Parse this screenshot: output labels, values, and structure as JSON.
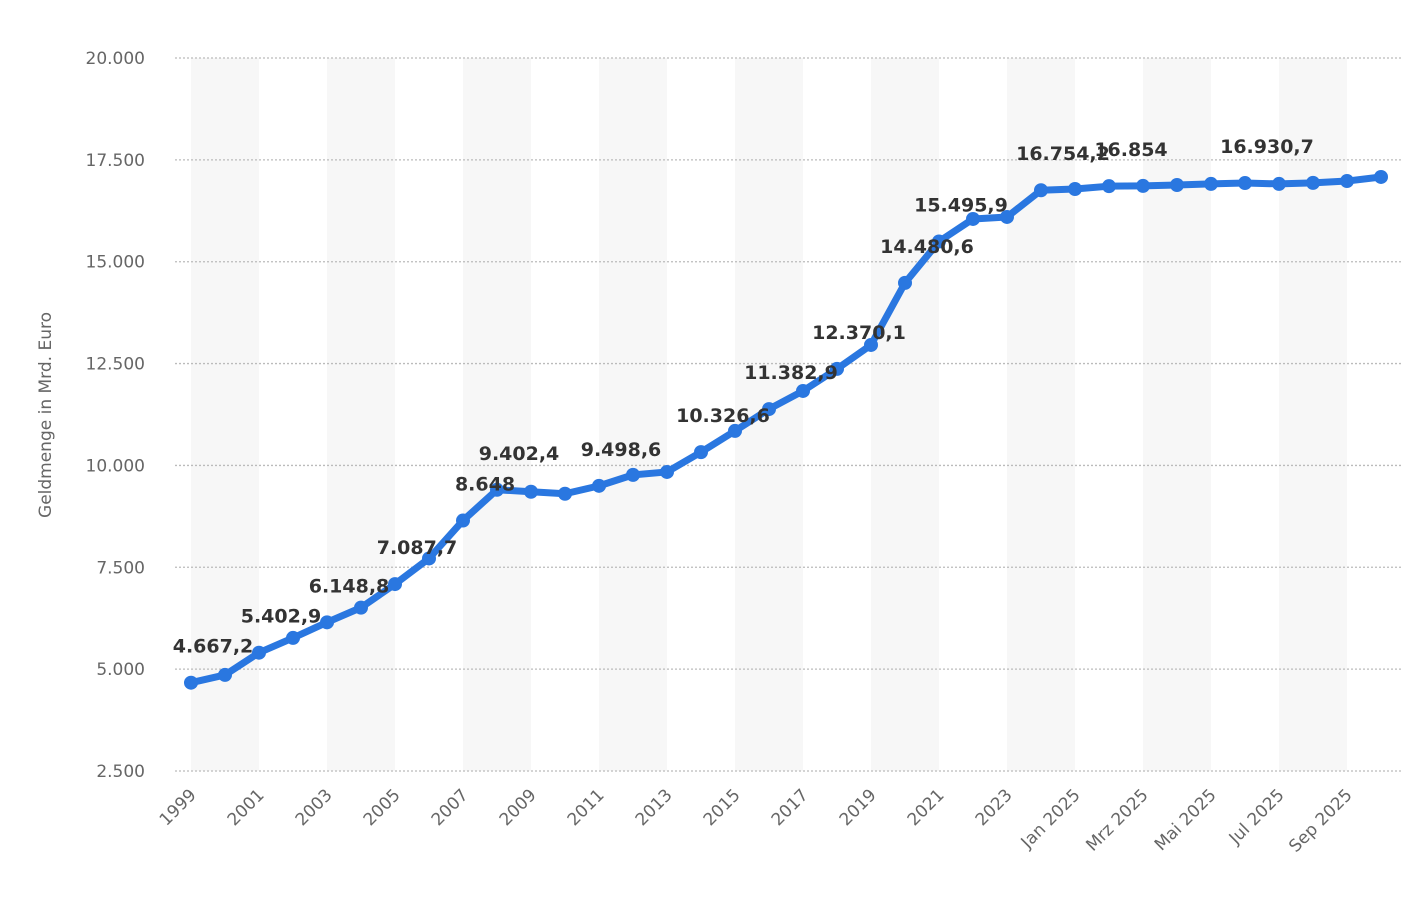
{
  "chart_data": {
    "type": "line",
    "title": "",
    "xlabel": "",
    "ylabel": "Geldmenge in Mrd. Euro",
    "ylim": [
      2500,
      20000
    ],
    "yticks": [
      "2.500",
      "5.000",
      "7.500",
      "10.000",
      "12.500",
      "15.000",
      "17.500",
      "20.000"
    ],
    "ytick_values": [
      2500,
      5000,
      7500,
      10000,
      12500,
      15000,
      17500,
      20000
    ],
    "grid": true,
    "colors": {
      "line": "#2a77e0",
      "band": "#f7f7f7",
      "grid": "#bbbbbb"
    },
    "categories": [
      "1999",
      "2000",
      "2001",
      "2002",
      "2003",
      "2004",
      "2005",
      "2006",
      "2007",
      "2008",
      "2009",
      "2010",
      "2011",
      "2012",
      "2013",
      "2014",
      "2015",
      "2016",
      "2017",
      "2018",
      "2019",
      "2020",
      "2021",
      "2022",
      "2023",
      "2024",
      "Jan 2025",
      "Feb 2025",
      "Mrz 2025",
      "Apr 2025",
      "Mai 2025",
      "Jun 2025",
      "Jul 2025",
      "Aug 2025",
      "Sep 2025",
      "Okt 2025"
    ],
    "xtick_labels": [
      "1999",
      "",
      "2001",
      "",
      "2003",
      "",
      "2005",
      "",
      "2007",
      "",
      "2009",
      "",
      "2011",
      "",
      "2013",
      "",
      "2015",
      "",
      "2017",
      "",
      "2019",
      "",
      "2021",
      "",
      "2023",
      "",
      "Jan 2025",
      "",
      "Mrz 2025",
      "",
      "Mai 2025",
      "",
      "Jul 2025",
      "",
      "Sep 2025",
      ""
    ],
    "series": [
      {
        "name": "Geldmenge",
        "values": [
          4667.2,
          4858,
          5402.9,
          5766,
          6148.8,
          6510,
          7087.7,
          7717,
          8648,
          9402.4,
          9354,
          9305,
          9498.6,
          9768,
          9840,
          10326.6,
          10847,
          11382.9,
          11828,
          12370.1,
          12957,
          14480.6,
          15495.9,
          16049,
          16098,
          16754.2,
          16785,
          16854,
          16860,
          16883,
          16910,
          16930.7,
          16910,
          16935,
          16980,
          17080
        ]
      }
    ],
    "data_labels": [
      {
        "index": 0,
        "text": "4.667,2"
      },
      {
        "index": 2,
        "text": "5.402,9"
      },
      {
        "index": 4,
        "text": "6.148,8"
      },
      {
        "index": 6,
        "text": "7.087,7"
      },
      {
        "index": 8,
        "text": "8.648"
      },
      {
        "index": 9,
        "text": "9.402,4"
      },
      {
        "index": 12,
        "text": "9.498,6"
      },
      {
        "index": 15,
        "text": "10.326,6"
      },
      {
        "index": 17,
        "text": "11.382,9"
      },
      {
        "index": 19,
        "text": "12.370,1"
      },
      {
        "index": 21,
        "text": "14.480,6"
      },
      {
        "index": 22,
        "text": "15.495,9"
      },
      {
        "index": 25,
        "text": "16.754,2"
      },
      {
        "index": 27,
        "text": "16.854"
      },
      {
        "index": 31,
        "text": "16.930,7"
      }
    ]
  }
}
